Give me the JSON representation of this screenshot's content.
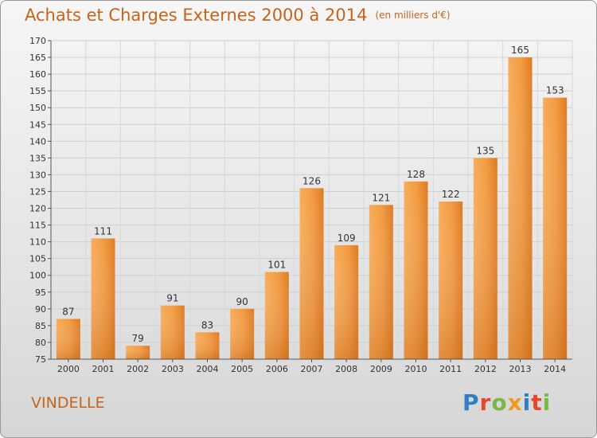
{
  "header": {
    "title": "Achats et Charges Externes 2000 à 2014",
    "subtitle": "(en milliers d'€)"
  },
  "footer": {
    "city": "VINDELLE",
    "logo": "Proxiti",
    "logo_colors": [
      "#2f7fc8",
      "#e8462b",
      "#7ab648",
      "#f39a1f",
      "#2f7fc8",
      "#e8462b",
      "#7ab648"
    ]
  },
  "chart_data": {
    "type": "bar",
    "categories": [
      "2000",
      "2001",
      "2002",
      "2003",
      "2004",
      "2005",
      "2006",
      "2007",
      "2008",
      "2009",
      "2010",
      "2011",
      "2012",
      "2013",
      "2014"
    ],
    "values": [
      87,
      111,
      79,
      91,
      83,
      90,
      101,
      126,
      109,
      121,
      128,
      122,
      135,
      165,
      153
    ],
    "yticks": [
      75,
      80,
      85,
      90,
      95,
      100,
      105,
      110,
      115,
      120,
      125,
      130,
      135,
      140,
      145,
      150,
      155,
      160,
      165,
      170
    ],
    "ylim": [
      75,
      170
    ],
    "grid": true,
    "bar_color_top": "#f7a54f",
    "bar_color_bottom": "#d9741c"
  }
}
